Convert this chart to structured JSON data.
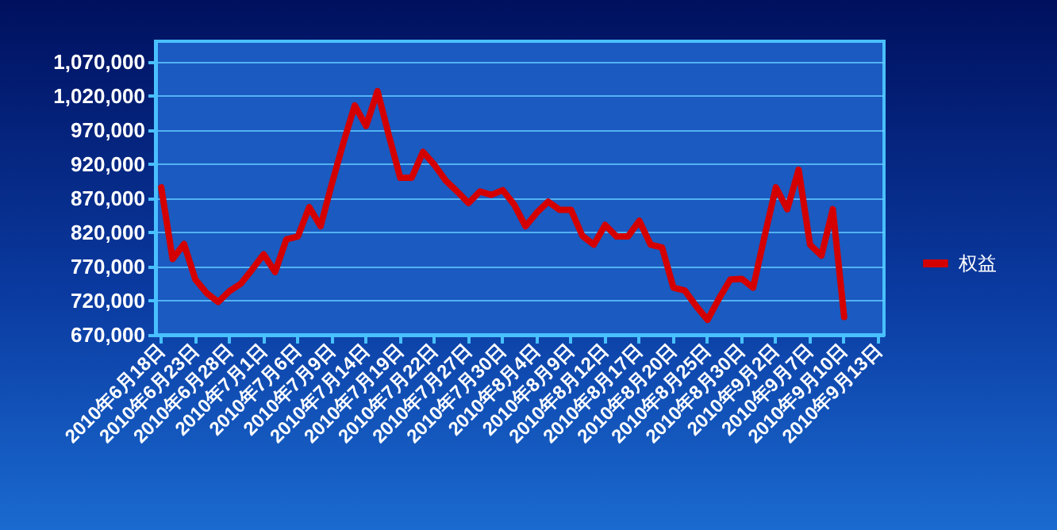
{
  "chart_data": {
    "type": "line",
    "categories": [
      "2010年6月18日",
      null,
      null,
      "2010年6月23日",
      null,
      null,
      "2010年6月28日",
      null,
      null,
      "2010年7月1日",
      null,
      null,
      "2010年7月6日",
      null,
      null,
      "2010年7月9日",
      null,
      null,
      "2010年7月14日",
      null,
      null,
      "2010年7月19日",
      null,
      null,
      "2010年7月22日",
      null,
      null,
      "2010年7月27日",
      null,
      null,
      "2010年7月30日",
      null,
      null,
      "2010年8月4日",
      null,
      null,
      "2010年8月9日",
      null,
      null,
      "2010年8月12日",
      null,
      null,
      "2010年8月17日",
      null,
      null,
      "2010年8月20日",
      null,
      null,
      "2010年8月25日",
      null,
      null,
      "2010年8月30日",
      null,
      null,
      "2010年9月2日",
      null,
      null,
      "2010年9月7日",
      null,
      null,
      "2010年9月10日",
      null,
      null,
      "2010年9月13日"
    ],
    "series": [
      {
        "name": "权益",
        "color": "#d40000",
        "values": [
          886000,
          781000,
          803000,
          751000,
          731000,
          718000,
          734000,
          745000,
          766000,
          788000,
          762000,
          810000,
          814000,
          857000,
          829000,
          892000,
          951000,
          1006000,
          976000,
          1027000,
          962000,
          900000,
          900000,
          938000,
          919000,
          896000,
          880000,
          863000,
          880000,
          875000,
          882000,
          861000,
          829000,
          849000,
          865000,
          853000,
          853000,
          815000,
          802000,
          831000,
          814000,
          814000,
          837000,
          802000,
          798000,
          739000,
          735000,
          712000,
          692000,
          723000,
          751000,
          752000,
          739000,
          814000,
          886000,
          854000,
          912000,
          802000,
          786000,
          854000,
          696000,
          null,
          null,
          null
        ]
      }
    ],
    "ylim": [
      670000,
      1100000
    ],
    "yticks": [
      {
        "value": 670000,
        "label": "670,000"
      },
      {
        "value": 720000,
        "label": "720,000"
      },
      {
        "value": 770000,
        "label": "770,000"
      },
      {
        "value": 820000,
        "label": "820,000"
      },
      {
        "value": 870000,
        "label": "870,000"
      },
      {
        "value": 920000,
        "label": "920,000"
      },
      {
        "value": 970000,
        "label": "970,000"
      },
      {
        "value": 1020000,
        "label": "1,020,000"
      },
      {
        "value": 1070000,
        "label": "1,070,000"
      }
    ],
    "grid": "y",
    "legend": "right",
    "marker": "none",
    "line_style": "solid"
  }
}
